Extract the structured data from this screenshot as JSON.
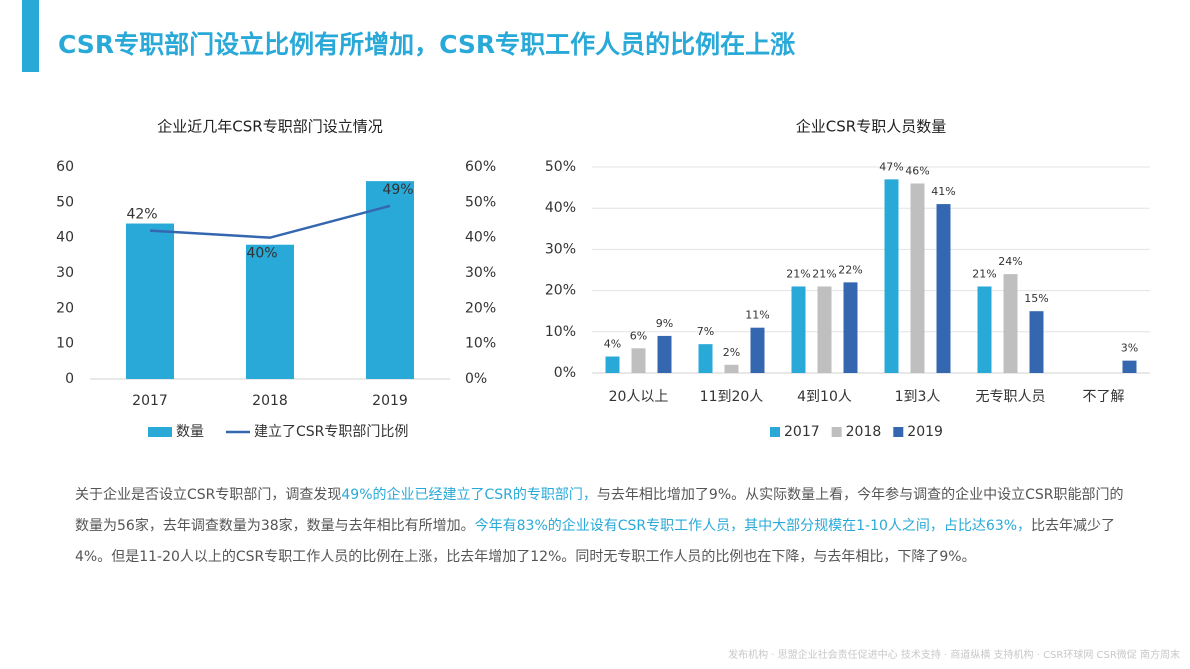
{
  "header": {
    "title": "CSR专职部门设立比例有所增加，CSR专职工作人员的比例在上涨"
  },
  "chart_data": [
    {
      "type": "bar",
      "title": "企业近几年CSR专职部门设立情况",
      "categories": [
        "2017",
        "2018",
        "2019"
      ],
      "series": [
        {
          "name": "数量",
          "type": "bar",
          "color": "#29a9d8",
          "values": [
            44,
            38,
            56
          ]
        },
        {
          "name": "建立了CSR专职部门比例",
          "type": "line",
          "axis": "y2",
          "color": "#3467b0",
          "values": [
            42,
            40,
            49
          ],
          "value_labels": [
            "42%",
            "40%",
            "49%"
          ]
        }
      ],
      "ylim": [
        0,
        60
      ],
      "yticks": [
        0,
        10,
        20,
        30,
        40,
        50,
        60
      ],
      "y2lim": [
        0,
        60
      ],
      "y2ticks": [
        {
          "value": 0,
          "label": "0%"
        },
        {
          "value": 10,
          "label": "10%"
        },
        {
          "value": 20,
          "label": "20%"
        },
        {
          "value": 30,
          "label": "30%"
        },
        {
          "value": 40,
          "label": "40%"
        },
        {
          "value": 50,
          "label": "50%"
        },
        {
          "value": 60,
          "label": "60%"
        }
      ],
      "grid": false,
      "legend": "bottom"
    },
    {
      "type": "bar",
      "title": "企业CSR专职人员数量",
      "categories": [
        "20人以上",
        "11到20人",
        "4到10人",
        "1到3人",
        "无专职人员",
        "不了解"
      ],
      "series": [
        {
          "name": "2017",
          "color": "#29a9d8",
          "values": [
            4,
            7,
            21,
            47,
            21,
            null
          ],
          "value_labels": [
            "4%",
            "7%",
            "21%",
            "47%",
            "21%",
            null
          ]
        },
        {
          "name": "2018",
          "color": "#bfbfbf",
          "values": [
            6,
            2,
            21,
            46,
            24,
            null
          ],
          "value_labels": [
            "6%",
            "2%",
            "21%",
            "46%",
            "24%",
            null
          ]
        },
        {
          "name": "2019",
          "color": "#3467b0",
          "values": [
            9,
            11,
            22,
            41,
            15,
            3
          ],
          "value_labels": [
            "9%",
            "11%",
            "22%",
            "41%",
            "15%",
            "3%"
          ]
        }
      ],
      "ylim": [
        0,
        50
      ],
      "yticks": [
        {
          "value": 0,
          "label": "0%"
        },
        {
          "value": 10,
          "label": "10%"
        },
        {
          "value": 20,
          "label": "20%"
        },
        {
          "value": 30,
          "label": "30%"
        },
        {
          "value": 40,
          "label": "40%"
        },
        {
          "value": 50,
          "label": "50%"
        }
      ],
      "grid": true,
      "legend": "bottom"
    }
  ],
  "body": {
    "segments": [
      {
        "text": "关于企业是否设立CSR专职部门，调查发现",
        "highlight": false
      },
      {
        "text": "49%的企业已经建立了CSR的专职部门，",
        "highlight": true
      },
      {
        "text": "与去年相比增加了9%。从实际数量上看，今年参与调查的企业中设立CSR职能部门的数量为56家，去年调查数量为38家，数量与去年相比有所增加。",
        "highlight": false
      },
      {
        "text": "今年有83%的企业设有CSR专职工作人员，其中大部分规模在1-10人之间，占比达63%，",
        "highlight": true
      },
      {
        "text": "比去年减少了4%。但是11-20人以上的CSR专职工作人员的比例在上涨，比去年增加了12%。同时无专职工作人员的比例也在下降，与去年相比，下降了9%。",
        "highlight": false
      }
    ],
    "highlight_color": "#29a9d8"
  },
  "footer": {
    "text": "发布机构 · 思盟企业社会责任促进中心  技术支持 · 商道纵横  支持机构 · CSR环球网 CSR微促 南方周末"
  }
}
